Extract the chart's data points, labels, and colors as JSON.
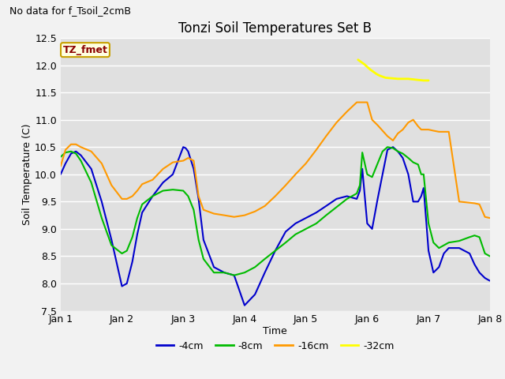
{
  "title": "Tonzi Soil Temperatures Set B",
  "xlabel": "Time",
  "ylabel": "Soil Temperature (C)",
  "no_data_text": "No data for f_Tsoil_2cmB",
  "tz_fmet_label": "TZ_fmet",
  "ylim": [
    7.5,
    12.5
  ],
  "yticks": [
    7.5,
    8.0,
    8.5,
    9.0,
    9.5,
    10.0,
    10.5,
    11.0,
    11.5,
    12.0,
    12.5
  ],
  "xlim": [
    0,
    7
  ],
  "xtick_positions": [
    0,
    1,
    2,
    3,
    4,
    5,
    6,
    7
  ],
  "xtick_labels": [
    "Jan 1",
    "Jan 2",
    "Jan 3",
    "Jan 4",
    "Jan 5",
    "Jan 6",
    "Jan 7",
    "Jan 8"
  ],
  "colors": {
    "4cm": "#0000cc",
    "8cm": "#00bb00",
    "16cm": "#ff9900",
    "32cm": "#ffff00",
    "bg": "#e0e0e0",
    "plot_bg": "#f0f0f0",
    "grid": "#ffffff"
  },
  "legend_labels": [
    "-4cm",
    "-8cm",
    "-16cm",
    "-32cm"
  ],
  "series": {
    "4cm": {
      "x": [
        0.0,
        0.08,
        0.17,
        0.25,
        0.33,
        0.5,
        0.67,
        0.83,
        1.0,
        1.08,
        1.17,
        1.25,
        1.33,
        1.5,
        1.67,
        1.83,
        2.0,
        2.04,
        2.08,
        2.17,
        2.25,
        2.33,
        2.5,
        2.67,
        2.83,
        3.0,
        3.17,
        3.33,
        3.5,
        3.67,
        3.83,
        4.0,
        4.17,
        4.33,
        4.5,
        4.67,
        4.83,
        4.88,
        4.92,
        5.0,
        5.08,
        5.17,
        5.25,
        5.33,
        5.42,
        5.5,
        5.58,
        5.67,
        5.75,
        5.83,
        5.88,
        5.92,
        6.0,
        6.08,
        6.17,
        6.25,
        6.33,
        6.5,
        6.67,
        6.75,
        6.83,
        6.92,
        7.0
      ],
      "y": [
        10.0,
        10.2,
        10.38,
        10.42,
        10.35,
        10.1,
        9.5,
        8.8,
        7.95,
        8.0,
        8.4,
        8.9,
        9.3,
        9.6,
        9.85,
        10.0,
        10.5,
        10.48,
        10.42,
        10.1,
        9.55,
        8.8,
        8.3,
        8.2,
        8.15,
        7.6,
        7.8,
        8.2,
        8.6,
        8.95,
        9.1,
        9.2,
        9.3,
        9.42,
        9.55,
        9.6,
        9.55,
        9.7,
        10.1,
        9.1,
        9.0,
        9.55,
        10.0,
        10.45,
        10.5,
        10.42,
        10.3,
        10.0,
        9.5,
        9.5,
        9.6,
        9.75,
        8.6,
        8.2,
        8.3,
        8.55,
        8.65,
        8.65,
        8.55,
        8.35,
        8.2,
        8.1,
        8.05
      ]
    },
    "8cm": {
      "x": [
        0.0,
        0.08,
        0.17,
        0.25,
        0.33,
        0.5,
        0.67,
        0.83,
        1.0,
        1.08,
        1.17,
        1.25,
        1.33,
        1.5,
        1.67,
        1.83,
        2.0,
        2.08,
        2.17,
        2.25,
        2.33,
        2.5,
        2.67,
        2.83,
        3.0,
        3.17,
        3.33,
        3.5,
        3.67,
        3.83,
        4.0,
        4.17,
        4.33,
        4.5,
        4.67,
        4.83,
        4.88,
        4.92,
        5.0,
        5.08,
        5.17,
        5.25,
        5.33,
        5.42,
        5.5,
        5.58,
        5.67,
        5.75,
        5.83,
        5.88,
        5.92,
        6.0,
        6.08,
        6.17,
        6.25,
        6.33,
        6.5,
        6.67,
        6.75,
        6.83,
        6.92,
        7.0
      ],
      "y": [
        10.32,
        10.4,
        10.42,
        10.38,
        10.25,
        9.85,
        9.2,
        8.7,
        8.55,
        8.6,
        8.85,
        9.2,
        9.45,
        9.6,
        9.7,
        9.72,
        9.7,
        9.6,
        9.35,
        8.8,
        8.45,
        8.2,
        8.2,
        8.15,
        8.2,
        8.3,
        8.45,
        8.6,
        8.75,
        8.9,
        9.0,
        9.1,
        9.25,
        9.4,
        9.55,
        9.65,
        9.8,
        10.4,
        10.0,
        9.95,
        10.2,
        10.42,
        10.5,
        10.48,
        10.42,
        10.38,
        10.3,
        10.22,
        10.18,
        10.0,
        10.0,
        9.1,
        8.75,
        8.65,
        8.7,
        8.75,
        8.78,
        8.85,
        8.88,
        8.85,
        8.55,
        8.5
      ]
    },
    "16cm": {
      "x": [
        0.0,
        0.08,
        0.17,
        0.25,
        0.33,
        0.5,
        0.67,
        0.83,
        1.0,
        1.08,
        1.17,
        1.25,
        1.33,
        1.5,
        1.67,
        1.83,
        2.0,
        2.08,
        2.17,
        2.25,
        2.33,
        2.5,
        2.67,
        2.83,
        3.0,
        3.17,
        3.33,
        3.5,
        3.67,
        3.83,
        4.0,
        4.17,
        4.33,
        4.5,
        4.67,
        4.83,
        5.0,
        5.08,
        5.17,
        5.25,
        5.33,
        5.42,
        5.5,
        5.58,
        5.67,
        5.75,
        5.83,
        5.88,
        5.92,
        6.0,
        6.08,
        6.17,
        6.25,
        6.33,
        6.5,
        6.67,
        6.75,
        6.83,
        6.92,
        7.0
      ],
      "y": [
        10.15,
        10.45,
        10.55,
        10.55,
        10.5,
        10.42,
        10.2,
        9.8,
        9.55,
        9.55,
        9.6,
        9.7,
        9.82,
        9.9,
        10.1,
        10.22,
        10.25,
        10.3,
        10.25,
        9.6,
        9.35,
        9.28,
        9.25,
        9.22,
        9.25,
        9.32,
        9.42,
        9.6,
        9.8,
        10.0,
        10.2,
        10.45,
        10.7,
        10.95,
        11.15,
        11.32,
        11.32,
        11.0,
        10.9,
        10.8,
        10.7,
        10.62,
        10.75,
        10.82,
        10.95,
        11.0,
        10.88,
        10.82,
        10.82,
        10.82,
        10.8,
        10.78,
        10.78,
        10.78,
        9.5,
        9.48,
        9.47,
        9.45,
        9.22,
        9.2
      ]
    },
    "32cm": {
      "x": [
        4.85,
        4.9,
        4.95,
        5.0,
        5.05,
        5.1,
        5.15,
        5.2,
        5.25,
        5.3,
        5.4,
        5.5,
        5.6,
        5.67,
        5.75,
        5.83,
        5.92,
        6.0
      ],
      "y": [
        12.1,
        12.06,
        12.02,
        11.97,
        11.92,
        11.88,
        11.84,
        11.81,
        11.79,
        11.77,
        11.76,
        11.75,
        11.75,
        11.75,
        11.74,
        11.73,
        11.72,
        11.72
      ]
    }
  }
}
